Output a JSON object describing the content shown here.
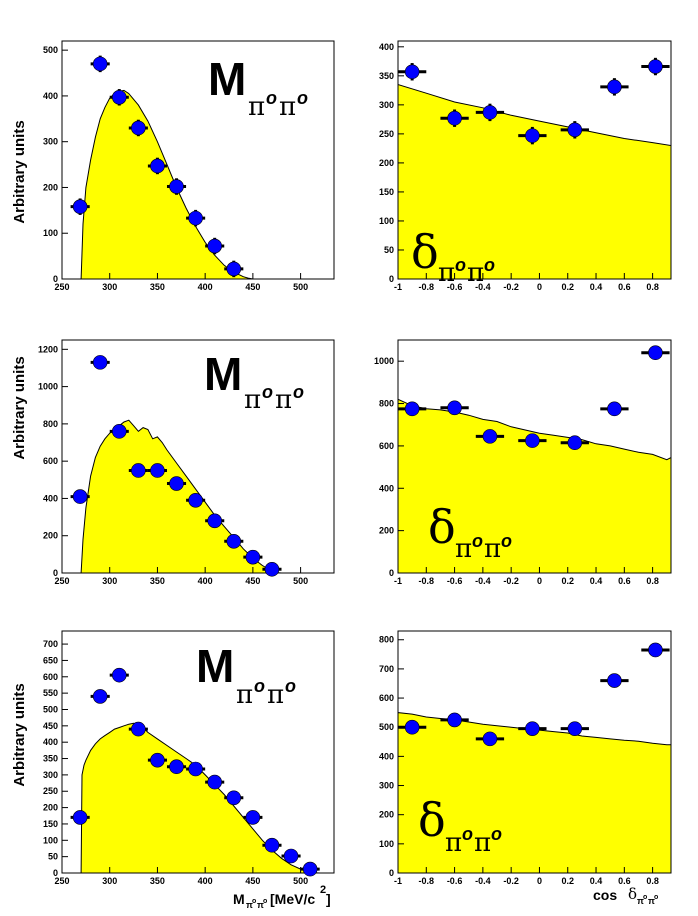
{
  "colors": {
    "fill": "#ffff00",
    "marker": "#0000ff",
    "frame": "#000000"
  },
  "labels": {
    "y_axis": "Arbitrary units",
    "mass_symbol": "M",
    "delta_symbol": "δ",
    "pi_sub": "π",
    "zero_sup": "o",
    "x_mass_symbol": "M",
    "x_mass_unit": "[MeV/c",
    "x_mass_pow": "2",
    "x_mass_close": "]",
    "x_cos": "cos",
    "x_cos_delta": "δ"
  },
  "chart_data": [
    {
      "type": "histogram+scatter",
      "name": "mass-top",
      "xlim": [
        250,
        535
      ],
      "ylim": [
        0,
        520
      ],
      "xticks": [
        250,
        300,
        350,
        400,
        450,
        500
      ],
      "yticks": [
        0,
        100,
        200,
        300,
        400,
        500
      ],
      "fill_curve": {
        "x": [
          270,
          272,
          275,
          280,
          285,
          290,
          295,
          300,
          305,
          310,
          315,
          320,
          330,
          340,
          350,
          360,
          370,
          380,
          390,
          400,
          410,
          420,
          430,
          440,
          445,
          450,
          452
        ],
        "y": [
          0,
          120,
          200,
          260,
          310,
          350,
          375,
          395,
          405,
          410,
          412,
          405,
          380,
          345,
          300,
          250,
          200,
          155,
          115,
          80,
          52,
          30,
          15,
          5,
          2,
          0,
          0
        ]
      },
      "points": {
        "x": [
          269,
          290,
          310,
          330,
          350,
          370,
          390,
          410,
          430
        ],
        "y": [
          158,
          470,
          397,
          330,
          247,
          202,
          133,
          72,
          22
        ],
        "xerr": 10,
        "yerr": 18
      }
    },
    {
      "type": "histogram+scatter",
      "name": "cos-top",
      "xlim": [
        -1,
        0.93
      ],
      "ylim": [
        0,
        410
      ],
      "xticks": [
        -1,
        -0.8,
        -0.6,
        -0.4,
        -0.2,
        0,
        0.2,
        0.4,
        0.6,
        0.8
      ],
      "yticks": [
        0,
        50,
        100,
        150,
        200,
        250,
        300,
        350,
        400
      ],
      "fill_curve": {
        "x": [
          -1,
          -0.8,
          -0.6,
          -0.4,
          -0.2,
          0,
          0.2,
          0.4,
          0.6,
          0.8,
          0.93
        ],
        "y": [
          335,
          320,
          305,
          295,
          282,
          272,
          262,
          252,
          242,
          235,
          230
        ]
      },
      "points": {
        "x": [
          -0.9,
          -0.6,
          -0.35,
          -0.05,
          0.25,
          0.53,
          0.82
        ],
        "y": [
          357,
          277,
          287,
          247,
          257,
          331,
          366
        ],
        "xerr": [
          0.1,
          0.1,
          0.1,
          0.1,
          0.1,
          0.1,
          0.1
        ],
        "yerr": 15
      }
    },
    {
      "type": "histogram+scatter",
      "name": "mass-middle",
      "xlim": [
        250,
        535
      ],
      "ylim": [
        0,
        1250
      ],
      "xticks": [
        250,
        300,
        350,
        400,
        450,
        500
      ],
      "yticks": [
        0,
        200,
        400,
        600,
        800,
        1000,
        1200
      ],
      "fill_curve": {
        "x": [
          270,
          272,
          275,
          280,
          285,
          290,
          295,
          300,
          305,
          310,
          315,
          320,
          325,
          330,
          335,
          340,
          345,
          350,
          355,
          360,
          370,
          380,
          390,
          400,
          410,
          420,
          430,
          440,
          450,
          460,
          470,
          475,
          480
        ],
        "y": [
          0,
          180,
          350,
          520,
          620,
          680,
          720,
          750,
          770,
          790,
          810,
          820,
          790,
          760,
          780,
          770,
          720,
          730,
          700,
          660,
          590,
          520,
          450,
          380,
          310,
          250,
          190,
          130,
          80,
          40,
          10,
          2,
          0
        ]
      },
      "points": {
        "x": [
          269,
          290,
          310,
          330,
          350,
          370,
          390,
          410,
          430,
          450,
          470
        ],
        "y": [
          410,
          1130,
          760,
          550,
          550,
          480,
          390,
          280,
          170,
          85,
          20
        ],
        "xerr": 10,
        "yerr": 30
      }
    },
    {
      "type": "histogram+scatter",
      "name": "cos-middle",
      "xlim": [
        -1,
        0.93
      ],
      "ylim": [
        0,
        1100
      ],
      "xticks": [
        -1,
        -0.8,
        -0.6,
        -0.4,
        -0.2,
        0,
        0.2,
        0.4,
        0.6,
        0.8
      ],
      "yticks": [
        0,
        200,
        400,
        600,
        800,
        1000
      ],
      "fill_curve": {
        "x": [
          -1,
          -0.9,
          -0.8,
          -0.7,
          -0.6,
          -0.5,
          -0.4,
          -0.3,
          -0.2,
          -0.1,
          0,
          0.1,
          0.2,
          0.3,
          0.4,
          0.5,
          0.6,
          0.7,
          0.8,
          0.9,
          0.93
        ],
        "y": [
          820,
          790,
          775,
          770,
          760,
          745,
          725,
          715,
          690,
          675,
          660,
          650,
          640,
          630,
          610,
          600,
          585,
          570,
          560,
          535,
          545
        ]
      },
      "points": {
        "x": [
          -0.9,
          -0.6,
          -0.35,
          -0.05,
          0.25,
          0.53,
          0.82
        ],
        "y": [
          775,
          780,
          645,
          625,
          615,
          775,
          1040
        ],
        "xerr": [
          0.1,
          0.1,
          0.1,
          0.1,
          0.1,
          0.1,
          0.1
        ],
        "yerr": 20
      }
    },
    {
      "type": "histogram+scatter",
      "name": "mass-bottom",
      "xlim": [
        250,
        535
      ],
      "ylim": [
        0,
        740
      ],
      "xticks": [
        250,
        300,
        350,
        400,
        450,
        500
      ],
      "yticks": [
        0,
        50,
        100,
        150,
        200,
        250,
        300,
        350,
        400,
        450,
        500,
        550,
        600,
        650,
        700
      ],
      "fill_curve": {
        "x": [
          270,
          271,
          273,
          275,
          280,
          285,
          290,
          295,
          300,
          305,
          310,
          315,
          320,
          325,
          330,
          335,
          340,
          350,
          360,
          370,
          380,
          390,
          400,
          410,
          420,
          430,
          440,
          450,
          460,
          470,
          480,
          490,
          500,
          510,
          515,
          520
        ],
        "y": [
          0,
          300,
          330,
          345,
          375,
          395,
          410,
          420,
          430,
          440,
          445,
          450,
          455,
          458,
          455,
          445,
          430,
          410,
          390,
          370,
          350,
          330,
          300,
          270,
          240,
          205,
          170,
          135,
          100,
          70,
          45,
          25,
          12,
          4,
          1,
          0
        ]
      },
      "points": {
        "x": [
          269,
          290,
          310,
          330,
          350,
          370,
          390,
          410,
          430,
          450,
          470,
          490,
          510
        ],
        "y": [
          170,
          540,
          605,
          440,
          345,
          325,
          318,
          278,
          230,
          170,
          85,
          52,
          12
        ],
        "xerr": 10,
        "yerr": 15
      }
    },
    {
      "type": "histogram+scatter",
      "name": "cos-bottom",
      "xlim": [
        -1,
        0.93
      ],
      "ylim": [
        0,
        830
      ],
      "xticks": [
        -1,
        -0.8,
        -0.6,
        -0.4,
        -0.2,
        0,
        0.2,
        0.4,
        0.6,
        0.8
      ],
      "yticks": [
        0,
        100,
        200,
        300,
        400,
        500,
        600,
        700,
        800
      ],
      "fill_curve": {
        "x": [
          -1,
          -0.9,
          -0.8,
          -0.7,
          -0.6,
          -0.5,
          -0.4,
          -0.3,
          -0.2,
          -0.1,
          0,
          0.1,
          0.2,
          0.3,
          0.4,
          0.5,
          0.6,
          0.7,
          0.8,
          0.9,
          0.93
        ],
        "y": [
          550,
          545,
          535,
          530,
          525,
          518,
          510,
          505,
          500,
          495,
          490,
          485,
          480,
          470,
          465,
          460,
          455,
          452,
          445,
          440,
          440
        ]
      },
      "points": {
        "x": [
          -0.9,
          -0.6,
          -0.35,
          -0.05,
          0.25,
          0.53,
          0.82
        ],
        "y": [
          500,
          525,
          460,
          495,
          495,
          660,
          765
        ],
        "xerr": [
          0.1,
          0.1,
          0.1,
          0.1,
          0.1,
          0.1,
          0.1
        ],
        "yerr": 15
      }
    }
  ]
}
